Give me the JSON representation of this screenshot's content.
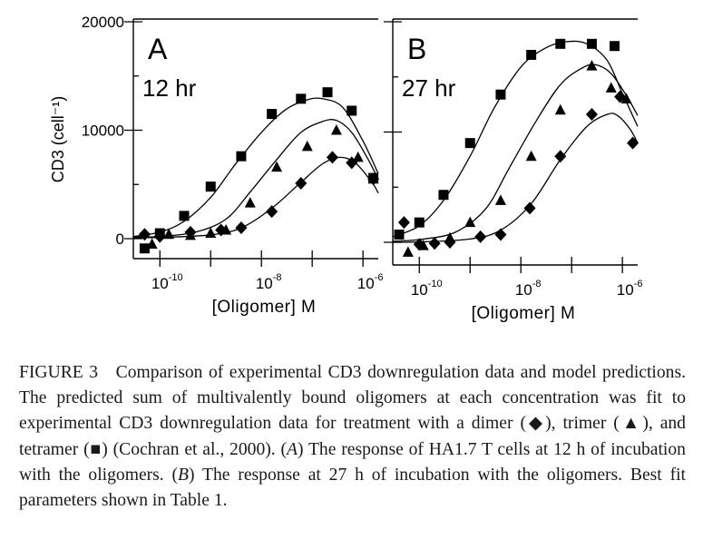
{
  "chart_data": [
    {
      "type": "scatter",
      "panel_label": "A",
      "condition_label": "12 hr",
      "ylabel": "CD3 (cell⁻¹)",
      "xlabel": "[Oligomer] M",
      "x_scale": "log",
      "xlim": [
        3e-11,
        2e-06
      ],
      "ylim": [
        -2000,
        20000
      ],
      "yticks": [
        0,
        10000,
        20000
      ],
      "ytick_labels": [
        "0",
        "10000",
        "20000"
      ],
      "xticks": [
        1e-10,
        1e-08,
        1e-06
      ],
      "xtick_labels": [
        {
          "base": "10",
          "exp": "-10"
        },
        {
          "base": "10",
          "exp": "-8"
        },
        {
          "base": "10",
          "exp": "-6"
        }
      ],
      "series": [
        {
          "marker": "diamond",
          "legend_symbol": "◆",
          "points": [
            [
              5e-11,
              400
            ],
            [
              1e-10,
              200
            ],
            [
              4e-10,
              600
            ],
            [
              1.6e-09,
              800
            ],
            [
              4e-09,
              1000
            ],
            [
              1.6e-08,
              2500
            ],
            [
              6e-08,
              5100
            ],
            [
              2.5e-07,
              7500
            ],
            [
              6e-07,
              7000
            ],
            [
              1.6e-06,
              5500
            ]
          ],
          "fit": [
            [
              3e-11,
              100
            ],
            [
              1e-10,
              120
            ],
            [
              1e-09,
              350
            ],
            [
              4e-09,
              1000
            ],
            [
              1.6e-08,
              2800
            ],
            [
              6e-08,
              5200
            ],
            [
              1.6e-07,
              6900
            ],
            [
              3.5e-07,
              7500
            ],
            [
              7e-07,
              7000
            ],
            [
              1.5e-06,
              5200
            ],
            [
              2e-06,
              4200
            ]
          ]
        },
        {
          "marker": "triangle",
          "legend_symbol": "▲",
          "points": [
            [
              7e-11,
              -500
            ],
            [
              1.5e-10,
              400
            ],
            [
              4e-10,
              300
            ],
            [
              1e-09,
              500
            ],
            [
              2e-09,
              800
            ],
            [
              6e-09,
              3300
            ],
            [
              2e-08,
              6600
            ],
            [
              8e-08,
              8500
            ],
            [
              3e-07,
              10000
            ],
            [
              8e-07,
              7500
            ],
            [
              1.6e-06,
              5500
            ]
          ],
          "fit": [
            [
              3e-11,
              150
            ],
            [
              1e-10,
              200
            ],
            [
              5e-10,
              600
            ],
            [
              2e-09,
              1800
            ],
            [
              6e-09,
              4300
            ],
            [
              2e-08,
              7300
            ],
            [
              6e-08,
              9800
            ],
            [
              1.6e-07,
              10800
            ],
            [
              3e-07,
              10900
            ],
            [
              6e-07,
              9800
            ],
            [
              1.2e-06,
              7500
            ],
            [
              2e-06,
              5500
            ]
          ]
        },
        {
          "marker": "square",
          "legend_symbol": "■",
          "points": [
            [
              5e-11,
              -900
            ],
            [
              1e-10,
              500
            ],
            [
              3e-10,
              2100
            ],
            [
              1e-09,
              4800
            ],
            [
              4e-09,
              7600
            ],
            [
              1.6e-08,
              11500
            ],
            [
              6e-08,
              12900
            ],
            [
              2e-07,
              13500
            ],
            [
              6e-07,
              11800
            ],
            [
              1.6e-06,
              5600
            ]
          ],
          "fit": [
            [
              3e-11,
              200
            ],
            [
              1e-10,
              600
            ],
            [
              3e-10,
              1600
            ],
            [
              1e-09,
              3800
            ],
            [
              3e-09,
              6800
            ],
            [
              1e-08,
              9800
            ],
            [
              3e-08,
              11900
            ],
            [
              8e-08,
              12800
            ],
            [
              1.6e-07,
              12900
            ],
            [
              4e-07,
              12100
            ],
            [
              1e-06,
              9000
            ],
            [
              2e-06,
              6000
            ]
          ]
        }
      ]
    },
    {
      "type": "scatter",
      "panel_label": "B",
      "condition_label": "27 hr",
      "xlabel": "[Oligomer] M",
      "x_scale": "log",
      "xlim": [
        3e-11,
        2e-06
      ],
      "ylim": [
        -2000,
        20000
      ],
      "xticks": [
        1e-10,
        1e-08,
        1e-06
      ],
      "xtick_labels": [
        {
          "base": "10",
          "exp": "-10"
        },
        {
          "base": "10",
          "exp": "-8"
        },
        {
          "base": "10",
          "exp": "-6"
        }
      ],
      "series": [
        {
          "marker": "diamond",
          "legend_symbol": "◆",
          "points": [
            [
              5e-11,
              1800
            ],
            [
              1e-10,
              -200
            ],
            [
              2e-10,
              -100
            ],
            [
              4e-10,
              0
            ],
            [
              1.6e-09,
              500
            ],
            [
              4e-09,
              700
            ],
            [
              1.5e-08,
              3100
            ],
            [
              6e-08,
              7800
            ],
            [
              2.5e-07,
              11600
            ],
            [
              9e-07,
              13200
            ],
            [
              1.6e-06,
              9000
            ]
          ],
          "fit": [
            [
              3e-11,
              0
            ],
            [
              1e-10,
              30
            ],
            [
              1e-09,
              300
            ],
            [
              4e-09,
              1100
            ],
            [
              1.6e-08,
              3500
            ],
            [
              6e-08,
              7500
            ],
            [
              2e-07,
              10500
            ],
            [
              5e-07,
              11600
            ],
            [
              8e-07,
              11500
            ],
            [
              1.4e-06,
              10300
            ],
            [
              2e-06,
              9000
            ]
          ]
        },
        {
          "marker": "triangle",
          "legend_symbol": "▲",
          "points": [
            [
              6e-11,
              -900
            ],
            [
              1.2e-10,
              -300
            ],
            [
              4e-10,
              400
            ],
            [
              1e-09,
              1800
            ],
            [
              4e-09,
              3800
            ],
            [
              1.6e-08,
              7800
            ],
            [
              6e-08,
              12000
            ],
            [
              2.5e-07,
              16000
            ],
            [
              6e-07,
              14000
            ],
            [
              1.2e-06,
              13000
            ]
          ],
          "fit": [
            [
              3e-11,
              100
            ],
            [
              1e-10,
              250
            ],
            [
              5e-10,
              900
            ],
            [
              2e-09,
              3000
            ],
            [
              6e-09,
              6800
            ],
            [
              2e-08,
              11000
            ],
            [
              6e-08,
              14300
            ],
            [
              1.6e-07,
              15800
            ],
            [
              3e-07,
              16100
            ],
            [
              6e-07,
              15300
            ],
            [
              1.2e-06,
              13300
            ],
            [
              2e-06,
              11500
            ]
          ]
        },
        {
          "marker": "square",
          "legend_symbol": "■",
          "points": [
            [
              4e-11,
              700
            ],
            [
              1e-10,
              1800
            ],
            [
              3e-10,
              4300
            ],
            [
              1e-09,
              9000
            ],
            [
              4e-09,
              13400
            ],
            [
              1.6e-08,
              17000
            ],
            [
              6e-08,
              18000
            ],
            [
              2.5e-07,
              18000
            ],
            [
              7e-07,
              17800
            ]
          ],
          "fit": [
            [
              3e-11,
              500
            ],
            [
              1e-10,
              1500
            ],
            [
              3e-10,
              3800
            ],
            [
              1e-09,
              7800
            ],
            [
              3e-09,
              12200
            ],
            [
              1e-08,
              15900
            ],
            [
              3e-08,
              17600
            ],
            [
              8e-08,
              18200
            ],
            [
              2e-07,
              18000
            ],
            [
              5e-07,
              16500
            ],
            [
              1e-06,
              13500
            ],
            [
              2e-06,
              10500
            ]
          ]
        }
      ]
    }
  ],
  "caption": {
    "p1": "FIGURE 3 Comparison of experimental CD3 downregulation data and model predictions. The predicted sum of multivalently bound oligomers at each concentration was fit to experimental CD3 downregulation data for treatment with a dimer (",
    "p2": "), trimer (",
    "p3": "), and tetramer (",
    "p4": ") (Cochran et al., 2000). (",
    "p5": ") The response of HA1.7 T cells at 12 h of incubation with the oligomers. (",
    "p6": ") The response at 27 h of incubation with the oligomers. Best fit parameters shown in Table 1.",
    "sym_dimer": "◆",
    "sym_trimer": "▲",
    "sym_tetramer": "■",
    "ref_a": "A",
    "ref_b": "B"
  }
}
